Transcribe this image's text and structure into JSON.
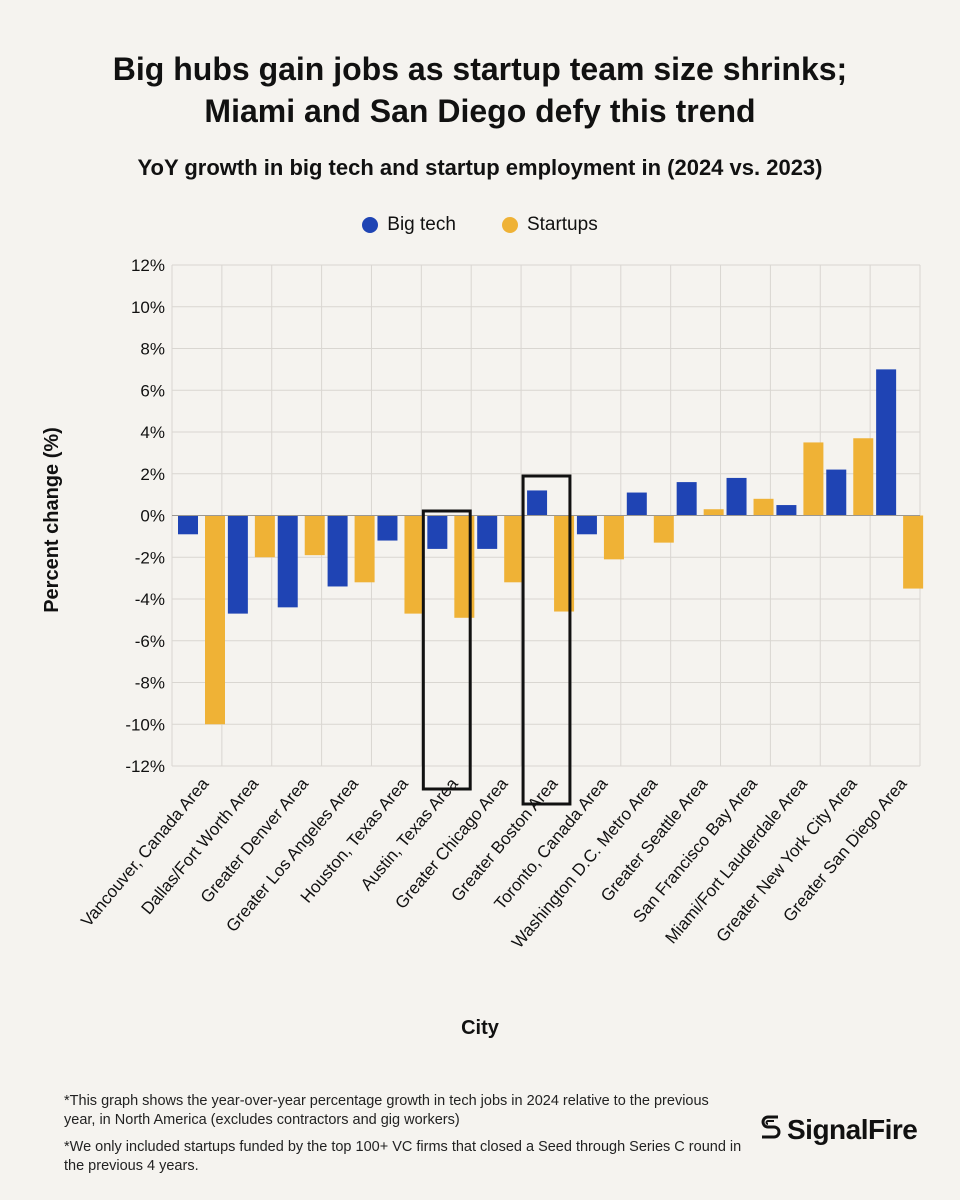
{
  "header": {
    "title_line1": "Big hubs gain jobs as startup team size shrinks;",
    "title_line2": "Miami and San Diego defy this trend",
    "subtitle": "YoY growth in big tech and startup employment in (2024 vs. 2023)"
  },
  "colors": {
    "big_tech": "#1f44b4",
    "startups": "#efb236",
    "grid": "#d9d6d1",
    "background": "#f5f3ef"
  },
  "chart_data": {
    "type": "bar",
    "title": "YoY growth in big tech and startup employment in (2024 vs. 2023)",
    "xlabel": "City",
    "ylabel": "Percent change (%)",
    "ylim": [
      -12,
      12
    ],
    "yticks": [
      -12,
      -10,
      -8,
      -6,
      -4,
      -2,
      0,
      2,
      4,
      6,
      8,
      10,
      12
    ],
    "ytick_labels": [
      "-12%",
      "-10%",
      "-8%",
      "-6%",
      "-4%",
      "-2%",
      "0%",
      "2%",
      "4%",
      "6%",
      "8%",
      "10%",
      "12%"
    ],
    "grid": true,
    "legend_position": "top-center",
    "categories": [
      "Vancouver, Canada Area",
      "Dallas/Fort Worth Area",
      "Greater Denver Area",
      "Greater Los Angeles Area",
      "Houston, Texas Area",
      "Austin, Texas Area",
      "Greater Chicago Area",
      "Greater Boston Area",
      "Toronto, Canada Area",
      "Washington D.C. Metro Area",
      "Greater Seattle Area",
      "San Francisco Bay Area",
      "Miami/Fort Lauderdale Area",
      "Greater New York City Area",
      "Greater San Diego Area"
    ],
    "series": [
      {
        "name": "Big tech",
        "values": [
          -0.9,
          -4.7,
          -4.4,
          -3.4,
          -1.2,
          -1.6,
          -1.6,
          1.2,
          -0.9,
          1.1,
          1.6,
          1.8,
          0.5,
          2.2,
          7.0
        ]
      },
      {
        "name": "Startups",
        "values": [
          -10.0,
          -2.0,
          -1.9,
          -3.2,
          -4.7,
          -4.9,
          -3.2,
          -4.6,
          -2.1,
          -1.3,
          0.3,
          0.8,
          3.5,
          3.7,
          -3.5
        ]
      }
    ],
    "highlighted_categories": [
      "Austin, Texas Area",
      "Greater Boston Area"
    ]
  },
  "footnotes": [
    "*This graph shows the year-over-year percentage growth in tech jobs in 2024 relative to the previous year, in North America (excludes contractors and gig workers)",
    "*We only included startups funded by the top 100+ VC firms that closed a Seed through Series C round in the previous 4 years."
  ],
  "brand": {
    "name": "SignalFire",
    "logo_icon": "signalfire-logo-icon"
  }
}
